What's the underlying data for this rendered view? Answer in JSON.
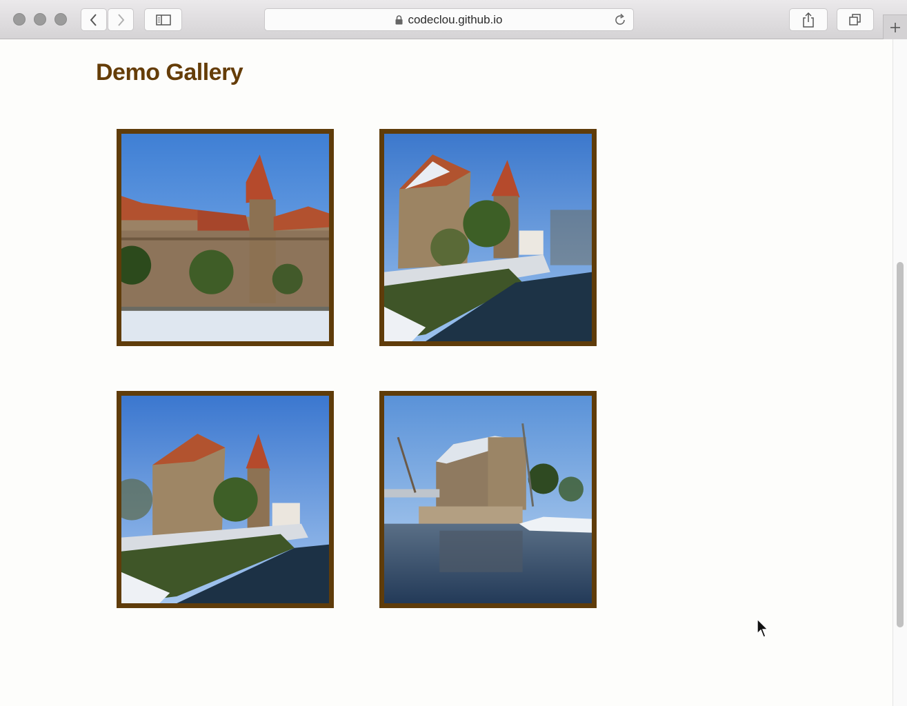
{
  "browser": {
    "url": "codeclou.github.io",
    "icons": {
      "back": "chevron-left-icon",
      "forward": "chevron-right-icon",
      "sidebar": "sidebar-icon",
      "lock": "lock-icon",
      "reload": "reload-icon",
      "share": "share-icon",
      "tabs": "tabs-icon",
      "new_tab": "plus-icon"
    }
  },
  "page": {
    "title": "Demo Gallery",
    "title_color": "#653d08",
    "frame_color": "#5f3c0a"
  },
  "gallery": {
    "items": [
      {
        "photo": "castle-wall-and-tower-in-snow"
      },
      {
        "photo": "castle-keep-by-moat-in-snow"
      },
      {
        "photo": "castle-keep-by-moat-wide-view"
      },
      {
        "photo": "castle-reflected-in-river"
      }
    ]
  }
}
